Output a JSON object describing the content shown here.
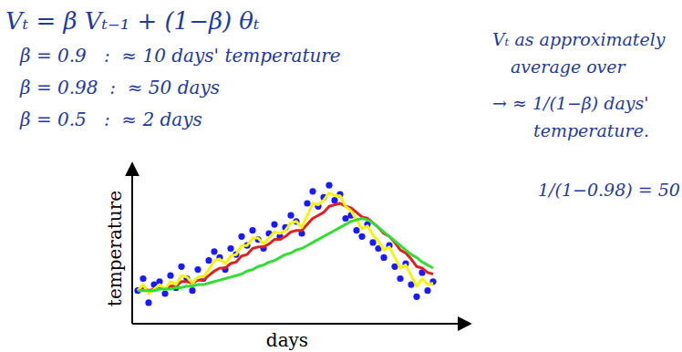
{
  "chart_data": {
    "type": "line",
    "x_label": "days",
    "y_label": "temperature",
    "tick_labels": false,
    "annotations": [
      "Vₜ = β Vₜ₋₁ + (1−β) θₜ",
      "β = 0.9   :  ≈ 10 days' temperature",
      "β = 0.98  :  ≈ 50 days",
      "β = 0.5   :  ≈ 2 days",
      "Vₜ as approximately",
      "average over",
      "→ ≈ 1/(1−β) days'",
      "temperature.",
      "1/(1−0.98) = 50"
    ],
    "xlim": [
      0,
      120
    ],
    "ylim": [
      0,
      100
    ],
    "x": [
      2,
      4,
      6,
      8,
      10,
      12,
      14,
      16,
      18,
      20,
      22,
      24,
      26,
      28,
      30,
      32,
      34,
      36,
      38,
      40,
      42,
      44,
      46,
      48,
      50,
      52,
      54,
      56,
      58,
      60,
      62,
      64,
      66,
      68,
      70,
      72,
      74,
      76,
      78,
      80,
      82,
      84,
      86,
      88,
      90,
      92,
      94,
      96,
      98,
      100,
      102,
      104,
      106,
      108,
      110
    ],
    "series": [
      {
        "type": "scatter",
        "marker": "circle",
        "color": "#1a1aff",
        "values": [
          22,
          30,
          14,
          26,
          28,
          20,
          32,
          24,
          38,
          30,
          22,
          36,
          30,
          42,
          48,
          44,
          36,
          50,
          46,
          58,
          52,
          62,
          56,
          50,
          60,
          66,
          58,
          64,
          72,
          68,
          60,
          80,
          88,
          78,
          84,
          92,
          82,
          86,
          70,
          72,
          62,
          58,
          66,
          54,
          50,
          44,
          52,
          38,
          30,
          40,
          26,
          18,
          34,
          22,
          28
        ]
      },
      {
        "type": "line",
        "line_style": "solid",
        "color": "#e02020",
        "values": [
          22,
          24,
          22,
          23,
          24,
          23,
          25,
          25,
          28,
          28,
          27,
          29,
          29,
          32,
          35,
          37,
          37,
          40,
          41,
          45,
          46,
          50,
          51,
          51,
          53,
          56,
          56,
          58,
          61,
          62,
          62,
          66,
          70,
          72,
          74,
          78,
          79,
          80,
          78,
          77,
          74,
          71,
          70,
          67,
          64,
          60,
          58,
          54,
          49,
          47,
          43,
          38,
          37,
          34,
          33
        ]
      },
      {
        "type": "line",
        "line_style": "solid",
        "color": "#f5f50a",
        "values": [
          22,
          26,
          20,
          23,
          26,
          23,
          28,
          26,
          32,
          31,
          27,
          31,
          31,
          36,
          42,
          43,
          40,
          45,
          46,
          52,
          52,
          57,
          57,
          53,
          57,
          61,
          60,
          62,
          67,
          68,
          64,
          72,
          80,
          79,
          82,
          87,
          85,
          85,
          78,
          75,
          69,
          63,
          65,
          59,
          55,
          49,
          51,
          44,
          37,
          39,
          32,
          25,
          30,
          26,
          27
        ]
      },
      {
        "type": "line",
        "line_style": "solid",
        "color": "#33dd33",
        "values": [
          22,
          22,
          22,
          22,
          23,
          23,
          23,
          24,
          24,
          25,
          25,
          26,
          26,
          27,
          28,
          29,
          30,
          31,
          32,
          33,
          35,
          36,
          38,
          39,
          41,
          42,
          44,
          46,
          47,
          49,
          50,
          52,
          54,
          56,
          58,
          60,
          62,
          64,
          66,
          68,
          69,
          70,
          69,
          67,
          64,
          61,
          58,
          55,
          52,
          49,
          46,
          44,
          41,
          39,
          37
        ]
      }
    ]
  }
}
